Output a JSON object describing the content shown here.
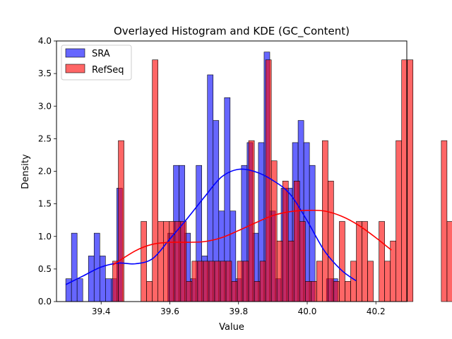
{
  "chart_data": {
    "type": "bar",
    "title": "Overlayed Histogram and KDE (GC_Content)",
    "xlabel": "Value",
    "ylabel": "Density",
    "xlim": [
      39.27,
      40.29
    ],
    "ylim": [
      0,
      4.0
    ],
    "xticks": [
      39.4,
      39.6,
      39.8,
      40.0,
      40.2
    ],
    "yticks": [
      0.0,
      0.5,
      1.0,
      1.5,
      2.0,
      2.5,
      3.0,
      3.5,
      4.0
    ],
    "xtick_labels": [
      "39.4",
      "39.6",
      "39.8",
      "40.0",
      "40.2"
    ],
    "ytick_labels": [
      "0.0",
      "0.5",
      "1.0",
      "1.5",
      "2.0",
      "2.5",
      "3.0",
      "3.5",
      "4.0"
    ],
    "legend_position": "top-left",
    "grid": false,
    "series": [
      {
        "name": "SRA",
        "color": "#0000ff",
        "line_color": "#0000ff",
        "bin_start": 39.297,
        "bin_width": 0.0165,
        "values": [
          0.35,
          1.05,
          0.35,
          0,
          0.7,
          1.05,
          0.7,
          0.35,
          0.35,
          1.74,
          0,
          0,
          0,
          0,
          0,
          0,
          0,
          0,
          1.05,
          2.09,
          2.09,
          1.05,
          0.35,
          2.09,
          0.7,
          3.48,
          2.78,
          1.39,
          3.13,
          1.39,
          0.35,
          2.09,
          2.44,
          1.05,
          2.44,
          3.83,
          1.39,
          0.35,
          1.74,
          1.74,
          2.44,
          2.78,
          2.44,
          2.09,
          0,
          0,
          0.35,
          0.35
        ],
        "kde_x": [
          39.297,
          39.35,
          39.4,
          39.45,
          39.5,
          39.55,
          39.6,
          39.65,
          39.7,
          39.75,
          39.8,
          39.85,
          39.9,
          39.95,
          40.0,
          40.05,
          40.1,
          40.142
        ],
        "kde_y": [
          0.26,
          0.4,
          0.53,
          0.59,
          0.58,
          0.66,
          0.96,
          1.27,
          1.6,
          1.91,
          2.03,
          1.99,
          1.86,
          1.65,
          1.24,
          0.78,
          0.48,
          0.32
        ]
      },
      {
        "name": "RefSeq",
        "color": "#ff0000",
        "line_color": "#ff0000",
        "bin_start": 39.4335,
        "bin_width": 0.0165,
        "values": [
          0.62,
          2.47,
          0,
          0,
          0,
          1.23,
          0.31,
          3.71,
          1.23,
          1.23,
          1.23,
          1.23,
          1.23,
          0.31,
          0.62,
          0.62,
          0.62,
          0.62,
          0.62,
          0.62,
          0.62,
          0.31,
          0.62,
          0.62,
          2.47,
          0.31,
          0.62,
          3.71,
          2.16,
          0.93,
          1.85,
          0.93,
          1.85,
          1.23,
          0.31,
          0.31,
          0.62,
          2.47,
          1.85,
          0.31,
          1.23,
          0.31,
          0.62,
          1.23,
          1.23,
          0.62,
          0,
          1.23,
          0.62,
          0.93,
          2.47,
          3.71,
          3.71,
          0,
          0,
          0,
          0,
          0,
          2.47,
          1.23
        ],
        "kde_x": [
          39.4335,
          39.5,
          39.55,
          39.6,
          39.65,
          39.7,
          39.75,
          39.8,
          39.85,
          39.9,
          39.95,
          40.0,
          40.05,
          40.1,
          40.15,
          40.2,
          40.245
        ],
        "kde_y": [
          0.56,
          0.78,
          0.88,
          0.91,
          0.91,
          0.92,
          0.98,
          1.09,
          1.21,
          1.32,
          1.38,
          1.4,
          1.39,
          1.31,
          1.17,
          0.98,
          0.79
        ]
      }
    ]
  }
}
